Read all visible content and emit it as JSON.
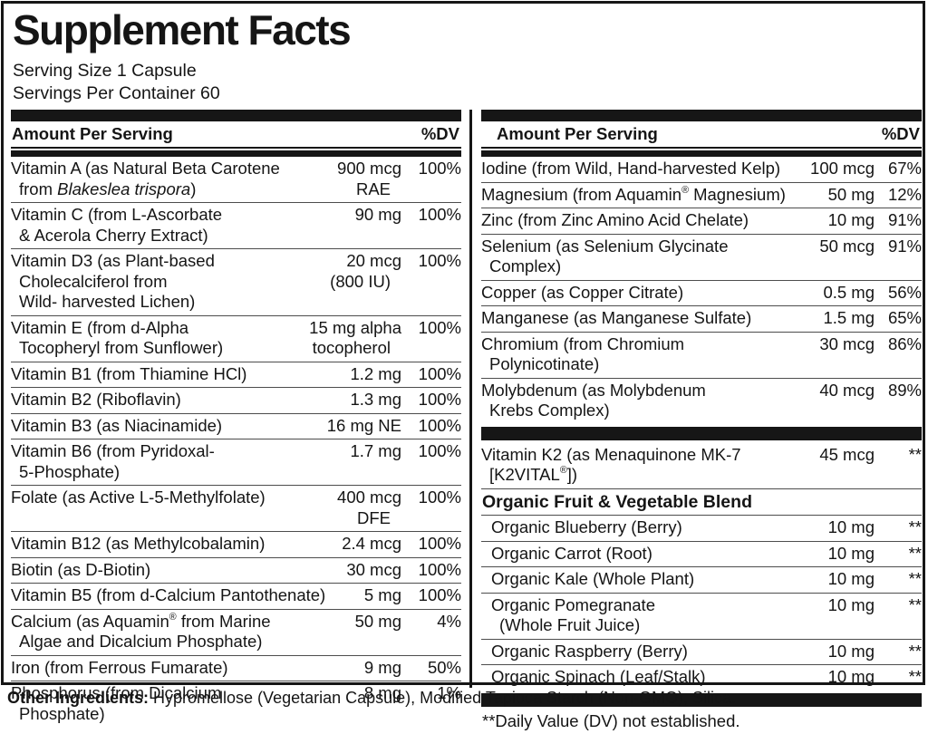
{
  "title": "Supplement Facts",
  "serving": {
    "size": "Serving Size 1 Capsule",
    "per_container": "Servings Per Container 60"
  },
  "columns_header": {
    "amount": "Amount Per Serving",
    "dv": "%DV"
  },
  "left_column": {
    "rows": [
      {
        "name": [
          "Vitamin A (as Natural Beta Carotene",
          "from {{Blakeslea trispora}})"
        ],
        "amount": [
          "900 mcg",
          "RAE"
        ],
        "dv": "100%"
      },
      {
        "name": [
          "Vitamin C (from L-Ascorbate",
          "& Acerola Cherry Extract)"
        ],
        "amount": [
          "90 mg"
        ],
        "dv": "100%"
      },
      {
        "name": [
          "Vitamin D3 (as Plant-based",
          "Cholecalciferol from",
          " Wild- harvested Lichen)"
        ],
        "amount": [
          "20 mcg",
          "(800 IU)"
        ],
        "dv": "100%"
      },
      {
        "name": [
          "Vitamin E (from d-Alpha",
          "Tocopheryl from Sunflower)"
        ],
        "amount": [
          "15 mg alpha",
          "tocopherol"
        ],
        "dv": "100%"
      },
      {
        "name": [
          "Vitamin B1 (from Thiamine HCl)"
        ],
        "amount": [
          "1.2 mg"
        ],
        "dv": "100%"
      },
      {
        "name": [
          "Vitamin B2 (Riboflavin)"
        ],
        "amount": [
          "1.3 mg"
        ],
        "dv": "100%"
      },
      {
        "name": [
          "Vitamin B3 (as Niacinamide)"
        ],
        "amount": [
          "16 mg NE"
        ],
        "dv": "100%"
      },
      {
        "name": [
          "Vitamin B6 (from Pyridoxal-",
          "5-Phosphate)"
        ],
        "amount": [
          "1.7 mg"
        ],
        "dv": "100%"
      },
      {
        "name": [
          "Folate (as Active L-5-Methylfolate)"
        ],
        "amount": [
          "400 mcg",
          "DFE"
        ],
        "dv": "100%"
      },
      {
        "name": [
          "Vitamin B12 (as Methylcobalamin)"
        ],
        "amount": [
          "2.4 mcg"
        ],
        "dv": "100%"
      },
      {
        "name": [
          "Biotin (as D-Biotin)"
        ],
        "amount": [
          "30 mcg"
        ],
        "dv": "100%"
      },
      {
        "name": [
          "Vitamin B5 (from d-Calcium Pantothenate)"
        ],
        "amount": [
          "5 mg"
        ],
        "dv": "100%"
      },
      {
        "name": [
          "Calcium (as Aquamin® from Marine",
          "Algae and Dicalcium Phosphate)"
        ],
        "amount": [
          "50 mg"
        ],
        "dv": "4%"
      },
      {
        "name": [
          "Iron (from Ferrous Fumarate)"
        ],
        "amount": [
          "9 mg"
        ],
        "dv": "50%"
      },
      {
        "name": [
          "Phosphorus (from Dicalcium",
          "Phosphate)"
        ],
        "amount": [
          "8 mg"
        ],
        "dv": "1%"
      }
    ]
  },
  "right_column": {
    "rows": [
      {
        "name": [
          "Iodine (from Wild, Hand-harvested Kelp)"
        ],
        "amount": [
          "100 mcg"
        ],
        "dv": "67%"
      },
      {
        "name": [
          "Magnesium (from Aquamin® Magnesium)"
        ],
        "amount": [
          "50 mg"
        ],
        "dv": "12%"
      },
      {
        "name": [
          "Zinc (from Zinc Amino Acid Chelate)"
        ],
        "amount": [
          "10 mg"
        ],
        "dv": "91%"
      },
      {
        "name": [
          "Selenium (as Selenium Glycinate",
          "Complex)"
        ],
        "amount": [
          "50 mcg"
        ],
        "dv": "91%"
      },
      {
        "name": [
          "Copper (as Copper Citrate)"
        ],
        "amount": [
          "0.5 mg"
        ],
        "dv": "56%"
      },
      {
        "name": [
          "Manganese (as Manganese Sulfate)"
        ],
        "amount": [
          "1.5 mg"
        ],
        "dv": "65%"
      },
      {
        "name": [
          "Chromium (from Chromium",
          "Polynicotinate)"
        ],
        "amount": [
          "30 mcg"
        ],
        "dv": "86%"
      },
      {
        "name": [
          "Molybdenum (as Molybdenum",
          "Krebs Complex)"
        ],
        "amount": [
          "40 mcg"
        ],
        "dv": "89%"
      },
      {
        "type": "bar"
      },
      {
        "name": [
          "Vitamin K2 (as Menaquinone MK-7",
          "[K2VITAL®])"
        ],
        "amount": [
          "45 mcg"
        ],
        "dv": "**"
      },
      {
        "type": "heading",
        "text": "Organic Fruit & Vegetable Blend"
      },
      {
        "name": [
          "Organic Blueberry (Berry)"
        ],
        "amount": [
          "10 mg"
        ],
        "dv": "**",
        "indent": true
      },
      {
        "name": [
          "Organic Carrot (Root)"
        ],
        "amount": [
          "10 mg"
        ],
        "dv": "**",
        "indent": true
      },
      {
        "name": [
          "Organic Kale (Whole Plant)"
        ],
        "amount": [
          "10 mg"
        ],
        "dv": "**",
        "indent": true
      },
      {
        "name": [
          "Organic Pomegranate",
          "(Whole Fruit Juice)"
        ],
        "amount": [
          "10 mg"
        ],
        "dv": "**",
        "indent": true
      },
      {
        "name": [
          "Organic Raspberry (Berry)"
        ],
        "amount": [
          "10 mg"
        ],
        "dv": "**",
        "indent": true
      },
      {
        "name": [
          "Organic Spinach (Leaf/Stalk)"
        ],
        "amount": [
          "10 mg"
        ],
        "dv": "**",
        "indent": true
      },
      {
        "type": "bar"
      },
      {
        "type": "note",
        "text": "**Daily Value (DV) not established."
      }
    ]
  },
  "other_ingredients": {
    "label": "Other Ingredients:",
    "text": " Hypromellose (Vegetarian Capsule), Modified Tapioca Starch (Non-GMO), Silica."
  }
}
